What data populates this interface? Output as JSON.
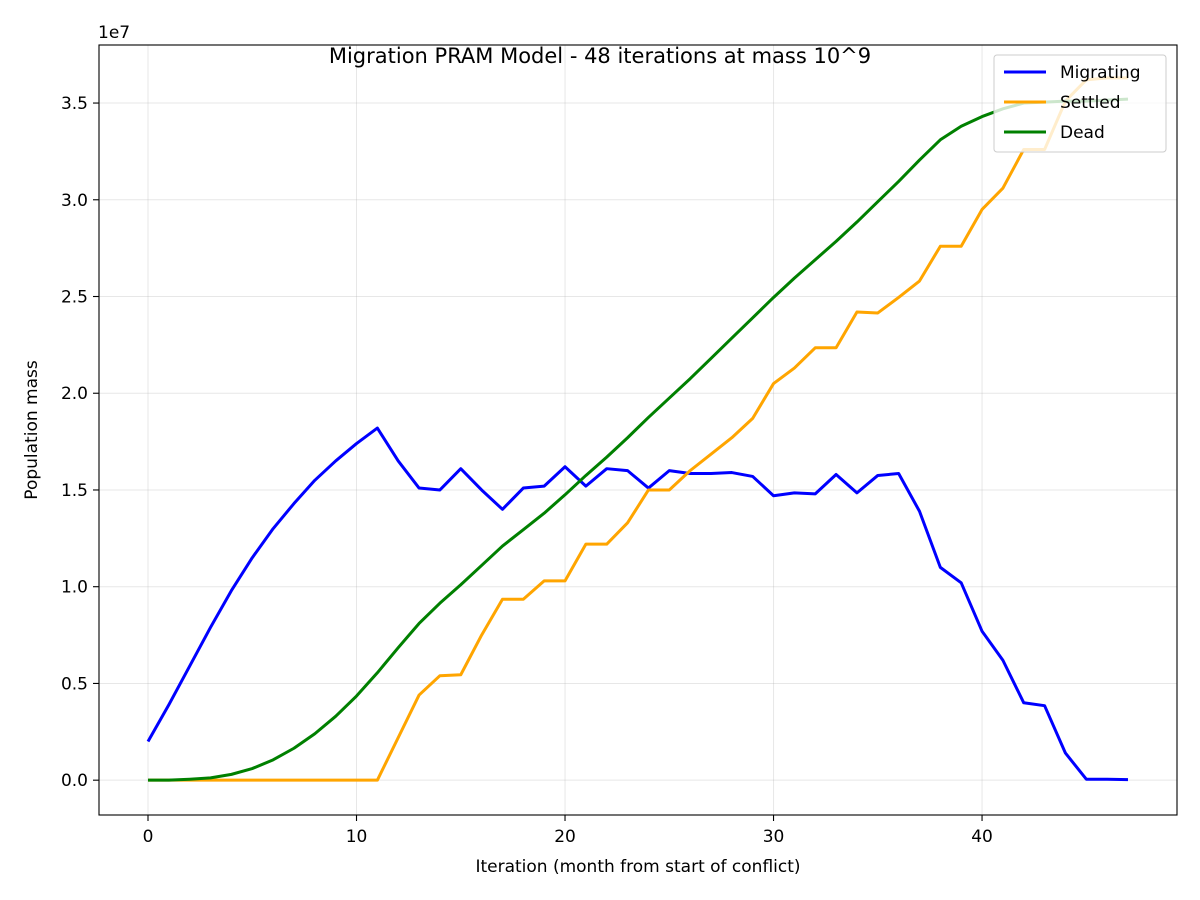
{
  "chart_data": {
    "type": "line",
    "title": "Migration PRAM Model - 48 iterations at mass 10^9",
    "xlabel": "Iteration (month from start of conflict)",
    "ylabel": "Population mass",
    "y_multiplier_label": "1e7",
    "xlim": [
      -2.35,
      49.35
    ],
    "ylim": [
      -0.18,
      3.8
    ],
    "y_scale_factor": 10000000,
    "x_ticks": [
      0,
      10,
      20,
      30,
      40
    ],
    "y_ticks": [
      0.0,
      0.5,
      1.0,
      1.5,
      2.0,
      2.5,
      3.0,
      3.5
    ],
    "y_tick_labels": [
      "0.0",
      "0.5",
      "1.0",
      "1.5",
      "2.0",
      "2.5",
      "3.0",
      "3.5"
    ],
    "grid": true,
    "legend_position": "top-right",
    "x": [
      0,
      1,
      2,
      3,
      4,
      5,
      6,
      7,
      8,
      9,
      10,
      11,
      12,
      13,
      14,
      15,
      16,
      17,
      18,
      19,
      20,
      21,
      22,
      23,
      24,
      25,
      26,
      27,
      28,
      29,
      30,
      31,
      32,
      33,
      34,
      35,
      36,
      37,
      38,
      39,
      40,
      41,
      42,
      43,
      44,
      45,
      46,
      47
    ],
    "series": [
      {
        "name": "Migrating",
        "color": "#0000ff",
        "values": [
          0.2,
          0.39,
          0.59,
          0.79,
          0.98,
          1.15,
          1.3,
          1.43,
          1.55,
          1.65,
          1.74,
          1.82,
          1.65,
          1.51,
          1.5,
          1.61,
          1.5,
          1.4,
          1.51,
          1.52,
          1.62,
          1.52,
          1.61,
          1.6,
          1.51,
          1.6,
          1.585,
          1.585,
          1.59,
          1.57,
          1.47,
          1.485,
          1.48,
          1.58,
          1.485,
          1.575,
          1.585,
          1.39,
          1.1,
          1.02,
          0.77,
          0.62,
          0.4,
          0.385,
          0.14,
          0.005,
          0.005,
          0.003
        ]
      },
      {
        "name": "Settled",
        "color": "#ffa500",
        "values": [
          0,
          0,
          0,
          0,
          0,
          0,
          0,
          0,
          0,
          0,
          0,
          0,
          0.22,
          0.44,
          0.54,
          0.545,
          0.75,
          0.935,
          0.935,
          1.03,
          1.03,
          1.22,
          1.22,
          1.33,
          1.5,
          1.5,
          1.6,
          1.685,
          1.77,
          1.87,
          2.05,
          2.13,
          2.235,
          2.235,
          2.42,
          2.415,
          2.495,
          2.58,
          2.76,
          2.76,
          2.95,
          3.06,
          3.26,
          3.26,
          3.51,
          3.62,
          3.63,
          3.63
        ]
      },
      {
        "name": "Dead",
        "color": "#008000",
        "values": [
          0,
          0,
          0.005,
          0.012,
          0.03,
          0.06,
          0.105,
          0.165,
          0.24,
          0.33,
          0.435,
          0.555,
          0.685,
          0.81,
          0.915,
          1.01,
          1.11,
          1.21,
          1.295,
          1.38,
          1.475,
          1.575,
          1.67,
          1.77,
          1.875,
          1.975,
          2.075,
          2.18,
          2.285,
          2.39,
          2.495,
          2.595,
          2.69,
          2.785,
          2.885,
          2.99,
          3.095,
          3.205,
          3.31,
          3.38,
          3.43,
          3.47,
          3.5,
          3.505,
          3.51,
          3.51,
          3.515,
          3.52
        ]
      }
    ]
  }
}
